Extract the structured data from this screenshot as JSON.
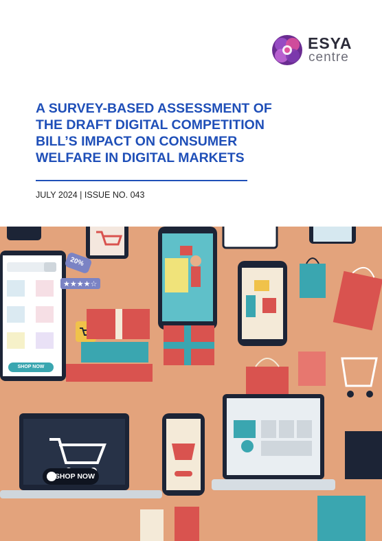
{
  "logo": {
    "word1": "ESYA",
    "word2": "centre"
  },
  "title": "A SURVEY-BASED ASSESSMENT OF\nTHE DRAFT DIGITAL COMPETITION\nBILL’S IMPACT ON CONSUMER\nWELFARE IN DIGITAL MARKETS",
  "issue_line": "JULY 2024 | ISSUE NO. 043",
  "illustration": {
    "discount_tag": "20%",
    "shop_now_small": "SHOP NOW",
    "shop_now_large": "SHOP NOW",
    "colors": {
      "background": "#e3a37c",
      "teal": "#3aa6b0",
      "red": "#d9534f",
      "navy": "#1c2436"
    }
  }
}
